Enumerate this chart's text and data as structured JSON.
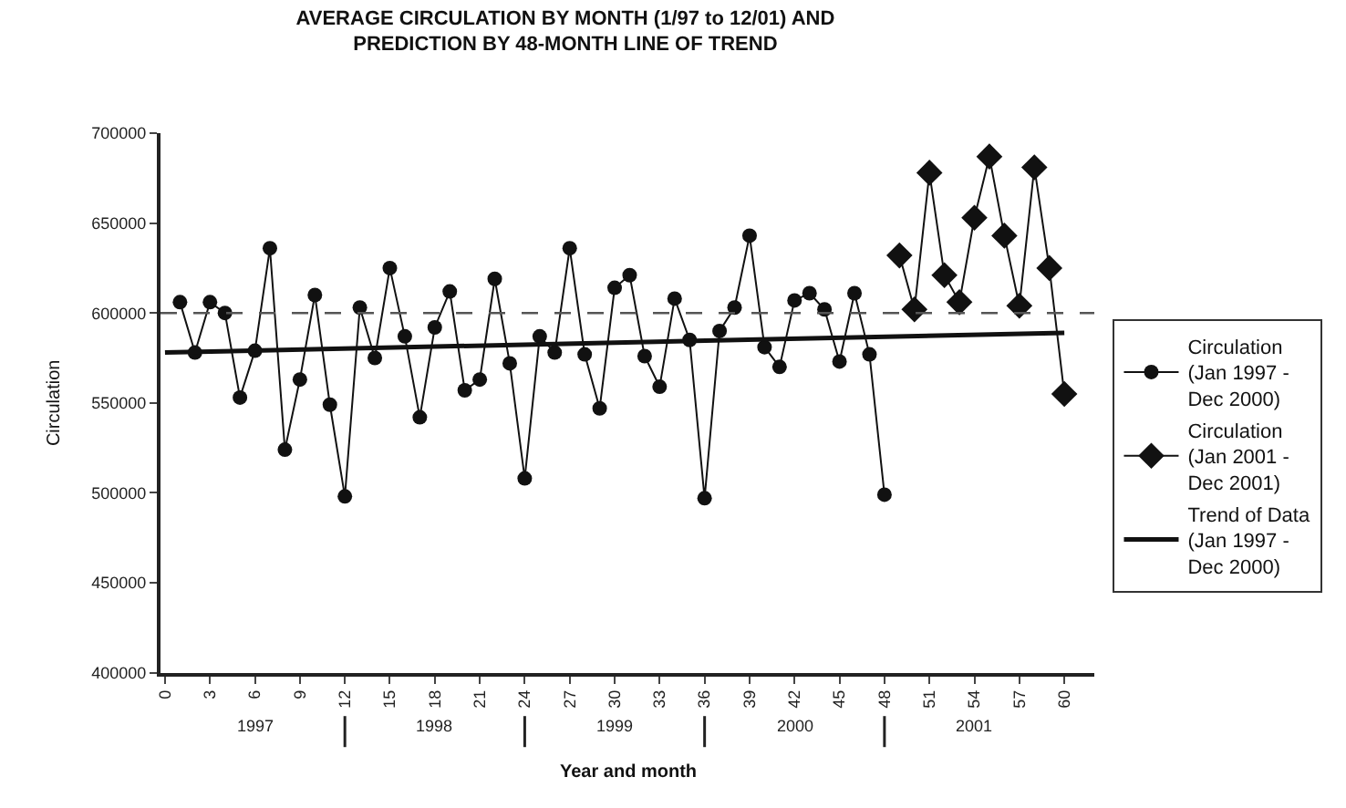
{
  "chart_data": {
    "type": "line",
    "title": "AVERAGE CIRCULATION BY MONTH (1/97 to 12/01) AND\nPREDICTION BY 48-MONTH LINE OF TREND",
    "xlabel": "Year and month",
    "ylabel": "Circulation",
    "series": [
      {
        "name": "Circulation (Jan 1997 - Dec 2000)",
        "color": "#111111",
        "marker": "circle",
        "x": [
          1,
          2,
          3,
          4,
          5,
          6,
          7,
          8,
          9,
          10,
          11,
          12,
          13,
          14,
          15,
          16,
          17,
          18,
          19,
          20,
          21,
          22,
          23,
          24,
          25,
          26,
          27,
          28,
          29,
          30,
          31,
          32,
          33,
          34,
          35,
          36,
          37,
          38,
          39,
          40,
          41,
          42,
          43,
          44,
          45,
          46,
          47,
          48
        ],
        "values": [
          606000,
          578000,
          606000,
          600000,
          553000,
          579000,
          636000,
          524000,
          563000,
          610000,
          549000,
          498000,
          603000,
          575000,
          625000,
          587000,
          542000,
          592000,
          612000,
          557000,
          563000,
          619000,
          572000,
          508000,
          587000,
          578000,
          636000,
          577000,
          547000,
          614000,
          621000,
          576000,
          559000,
          608000,
          585000,
          497000,
          590000,
          603000,
          643000,
          581000,
          570000,
          607000,
          611000,
          602000,
          573000,
          611000,
          577000,
          499000
        ]
      },
      {
        "name": "Circulation (Jan 2001 - Dec 2001)",
        "color": "#111111",
        "marker": "diamond",
        "x": [
          49,
          50,
          51,
          52,
          53,
          54,
          55,
          56,
          57,
          58,
          59,
          60
        ],
        "values": [
          632000,
          602000,
          678000,
          621000,
          606000,
          653000,
          687000,
          643000,
          604000,
          681000,
          625000,
          555000
        ]
      },
      {
        "name": "Trend of Data (Jan 1997 - Dec 2000)",
        "color": "#111111",
        "marker": "none",
        "x": [
          0,
          60
        ],
        "values": [
          578000,
          589000
        ]
      }
    ],
    "annotations": [
      "1997",
      "1998",
      "1999",
      "2000",
      "2001"
    ],
    "ref_lines": [
      {
        "axis": "y",
        "value": 600000,
        "color": "#555555",
        "line_style": "dashed"
      }
    ],
    "xlim": [
      -0.3,
      62
    ],
    "xticks": [
      0,
      3,
      6,
      9,
      12,
      15,
      18,
      21,
      24,
      27,
      30,
      33,
      36,
      39,
      42,
      45,
      48,
      51,
      54,
      57,
      60
    ],
    "ylim": [
      400000,
      700000
    ],
    "yticks": [
      400000,
      450000,
      500000,
      550000,
      600000,
      650000,
      700000
    ],
    "legend": "right",
    "line_style": "solid"
  }
}
